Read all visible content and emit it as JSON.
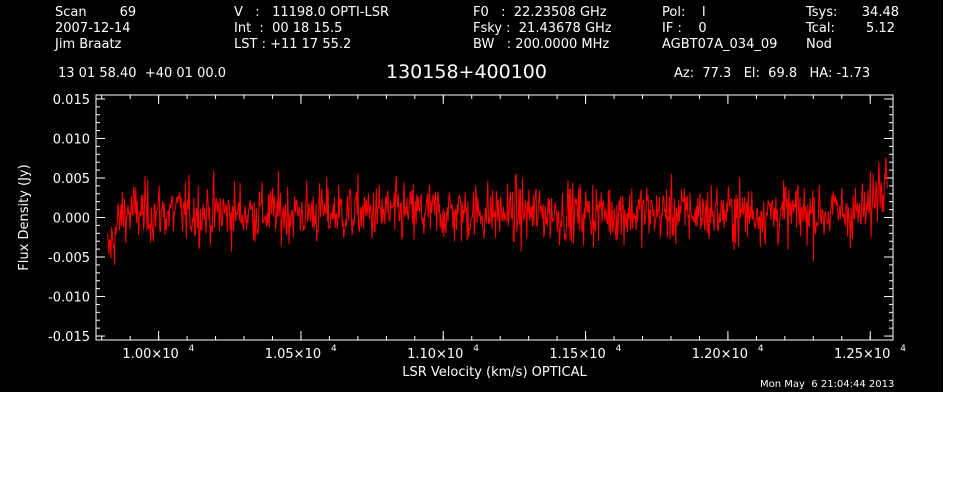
{
  "header": {
    "col1": [
      "Scan        69",
      "2007-12-14",
      "Jim Braatz"
    ],
    "col2": [
      "V   :   11198.0 OPTI-LSR",
      "Int  :  00 18 15.5",
      "LST : +11 17 55.2"
    ],
    "col3": [
      "F0   :  22.23508 GHz",
      "Fsky :  21.43678 GHz",
      "BW   : 200.0000 MHz"
    ],
    "col4": [
      "Pol:    I",
      "IF :    0",
      "AGBT07A_034_09"
    ],
    "col5_labels": [
      "Tsys:",
      "Tcal:",
      "Nod"
    ],
    "col5_values": [
      "34.48",
      "5.12",
      ""
    ],
    "coords": "13 01 58.40  +40 01 00.0",
    "source": "130158+400100",
    "azelha": "Az:  77.3   El:  69.8   HA: -1.73",
    "timestamp": "Mon May  6 21:04:44 2013"
  },
  "chart_data": {
    "type": "line",
    "xlabel": "LSR Velocity (km/s) OPTICAL",
    "ylabel": "Flux Density (Jy)",
    "xlim": [
      9780,
      12580
    ],
    "ylim": [
      -0.0155,
      0.0155
    ],
    "x_ticks": [
      10000,
      10500,
      11000,
      11500,
      12000,
      12500
    ],
    "x_tick_labels": [
      "1.00×10",
      "1.05×10",
      "1.10×10",
      "1.15×10",
      "1.20×10",
      "1.25×10"
    ],
    "x_tick_exponent": "4",
    "y_ticks": [
      -0.015,
      -0.01,
      -0.005,
      0.0,
      0.005,
      0.01,
      0.015
    ],
    "y_tick_labels": [
      "-0.015",
      "-0.010",
      "-0.005",
      "0.000",
      "0.005",
      "0.010",
      "0.015"
    ],
    "series": [
      {
        "color": "#ff0000",
        "x_range": [
          9820,
          12560
        ],
        "noise_rms": 0.0032,
        "baseline": 0.0006,
        "edge_rise_left": 0.004,
        "edge_rise_right": 0.005,
        "points": 1100
      }
    ]
  }
}
